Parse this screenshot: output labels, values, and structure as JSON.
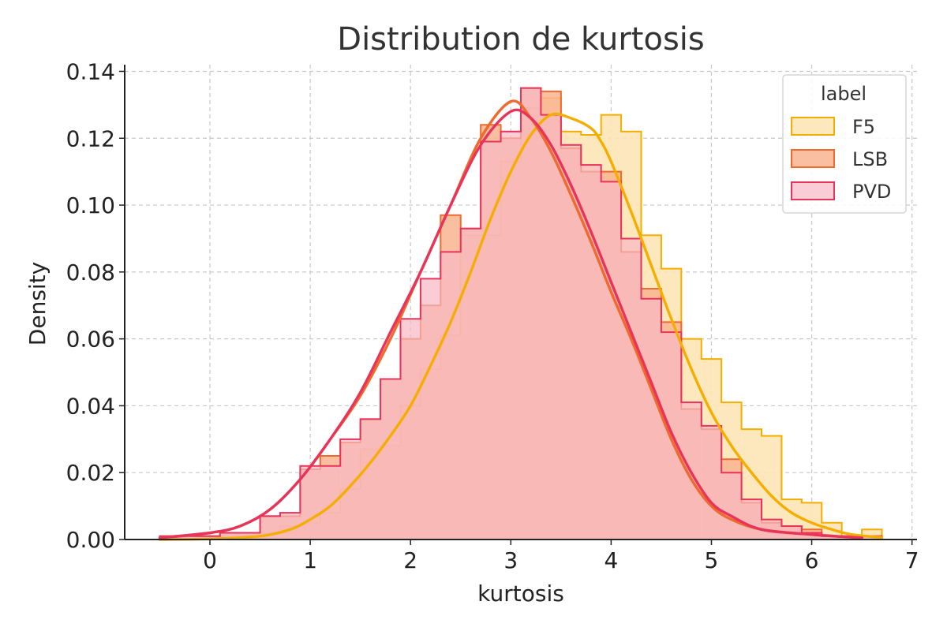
{
  "chart_data": {
    "type": "histogram",
    "title": "Distribution de kurtosis",
    "xlabel": "kurtosis",
    "ylabel": "Density",
    "xlim": [
      -0.85,
      7.05
    ],
    "ylim": [
      0,
      0.142
    ],
    "x_ticks": [
      0,
      1,
      2,
      3,
      4,
      5,
      6,
      7
    ],
    "x_tick_labels": [
      "0",
      "1",
      "2",
      "3",
      "4",
      "5",
      "6",
      "7"
    ],
    "y_ticks": [
      0,
      0.02,
      0.04,
      0.06,
      0.08,
      0.1,
      0.12,
      0.14
    ],
    "y_tick_labels": [
      "0.00",
      "0.02",
      "0.04",
      "0.06",
      "0.08",
      "0.10",
      "0.12",
      "0.14"
    ],
    "grid": true,
    "legend": {
      "title": "label",
      "placement": "top-right"
    },
    "bin_edges": [
      -0.5,
      -0.3,
      -0.1,
      0.1,
      0.3,
      0.5,
      0.7,
      0.9,
      1.1,
      1.3,
      1.5,
      1.7,
      1.9,
      2.1,
      2.3,
      2.5,
      2.7,
      2.9,
      3.1,
      3.3,
      3.5,
      3.7,
      3.9,
      4.1,
      4.3,
      4.5,
      4.7,
      4.9,
      5.1,
      5.3,
      5.5,
      5.7,
      5.9,
      6.1,
      6.3,
      6.5,
      6.7
    ],
    "series": [
      {
        "name": "F5",
        "color": "#F5AE00",
        "fill": "#FDE4B5",
        "fill_opacity": 0.9,
        "counts": [
          0,
          0,
          0,
          0,
          0.001,
          0.002,
          0.004,
          0.005,
          0.008,
          0.015,
          0.027,
          0.028,
          0.04,
          0.051,
          0.061,
          0.091,
          0.091,
          0.113,
          0.129,
          0.132,
          0.122,
          0.121,
          0.127,
          0.122,
          0.091,
          0.081,
          0.06,
          0.054,
          0.041,
          0.033,
          0.031,
          0.012,
          0.011,
          0.005,
          0.001,
          0.003
        ],
        "kde": [
          [
            -0.5,
            0.0
          ],
          [
            0.0,
            0.0002
          ],
          [
            0.5,
            0.001
          ],
          [
            0.8,
            0.003
          ],
          [
            1.0,
            0.006
          ],
          [
            1.2,
            0.01
          ],
          [
            1.4,
            0.016
          ],
          [
            1.6,
            0.023
          ],
          [
            1.8,
            0.031
          ],
          [
            2.0,
            0.04
          ],
          [
            2.2,
            0.052
          ],
          [
            2.4,
            0.065
          ],
          [
            2.6,
            0.08
          ],
          [
            2.8,
            0.096
          ],
          [
            3.0,
            0.11
          ],
          [
            3.2,
            0.121
          ],
          [
            3.4,
            0.127
          ],
          [
            3.6,
            0.126
          ],
          [
            3.8,
            0.123
          ],
          [
            3.9,
            0.119
          ],
          [
            4.0,
            0.113
          ],
          [
            4.2,
            0.098
          ],
          [
            4.4,
            0.082
          ],
          [
            4.6,
            0.066
          ],
          [
            4.8,
            0.051
          ],
          [
            5.0,
            0.038
          ],
          [
            5.2,
            0.028
          ],
          [
            5.4,
            0.02
          ],
          [
            5.6,
            0.013
          ],
          [
            5.8,
            0.008
          ],
          [
            6.0,
            0.005
          ],
          [
            6.2,
            0.003
          ],
          [
            6.4,
            0.0015
          ],
          [
            6.7,
            0.0006
          ]
        ]
      },
      {
        "name": "LSB",
        "color": "#EE6A2D",
        "fill": "#F9B48F",
        "fill_opacity": 0.85,
        "counts": [
          0.001,
          0.001,
          0.001,
          0.002,
          0.002,
          0.007,
          0.007,
          0.021,
          0.025,
          0.029,
          0.036,
          0.048,
          0.06,
          0.07,
          0.097,
          0.093,
          0.124,
          0.12,
          0.135,
          0.134,
          0.117,
          0.11,
          0.11,
          0.086,
          0.075,
          0.065,
          0.039,
          0.033,
          0.024,
          0.011,
          0.005,
          0.004,
          0.003,
          0.001,
          0.001,
          0.001
        ],
        "kde": [
          [
            -0.5,
            0.0005
          ],
          [
            0.0,
            0.002
          ],
          [
            0.3,
            0.004
          ],
          [
            0.6,
            0.009
          ],
          [
            0.9,
            0.018
          ],
          [
            1.2,
            0.03
          ],
          [
            1.5,
            0.043
          ],
          [
            1.8,
            0.06
          ],
          [
            2.1,
            0.08
          ],
          [
            2.4,
            0.1
          ],
          [
            2.7,
            0.12
          ],
          [
            3.0,
            0.131
          ],
          [
            3.2,
            0.126
          ],
          [
            3.4,
            0.116
          ],
          [
            3.6,
            0.103
          ],
          [
            3.8,
            0.089
          ],
          [
            4.0,
            0.074
          ],
          [
            4.2,
            0.06
          ],
          [
            4.4,
            0.045
          ],
          [
            4.6,
            0.03
          ],
          [
            4.8,
            0.018
          ],
          [
            5.0,
            0.01
          ],
          [
            5.2,
            0.006
          ],
          [
            5.5,
            0.003
          ],
          [
            6.0,
            0.0015
          ],
          [
            6.5,
            0.0005
          ]
        ]
      },
      {
        "name": "PVD",
        "color": "#E8335A",
        "fill": "#F8B8C4",
        "fill_opacity": 0.7,
        "counts": [
          0.001,
          0.001,
          0.001,
          0.002,
          0.002,
          0.007,
          0.008,
          0.022,
          0.022,
          0.03,
          0.036,
          0.048,
          0.066,
          0.078,
          0.086,
          0.093,
          0.119,
          0.122,
          0.135,
          0.127,
          0.118,
          0.112,
          0.107,
          0.09,
          0.072,
          0.062,
          0.041,
          0.034,
          0.02,
          0.012,
          0.006,
          0.004,
          0.002,
          0.001,
          0.001,
          0.001
        ],
        "kde": [
          [
            -0.5,
            0.0005
          ],
          [
            0.0,
            0.002
          ],
          [
            0.3,
            0.004
          ],
          [
            0.6,
            0.009
          ],
          [
            0.9,
            0.018
          ],
          [
            1.2,
            0.03
          ],
          [
            1.5,
            0.044
          ],
          [
            1.8,
            0.062
          ],
          [
            2.1,
            0.08
          ],
          [
            2.4,
            0.1
          ],
          [
            2.7,
            0.118
          ],
          [
            3.0,
            0.128
          ],
          [
            3.2,
            0.126
          ],
          [
            3.4,
            0.118
          ],
          [
            3.6,
            0.106
          ],
          [
            3.8,
            0.092
          ],
          [
            4.0,
            0.077
          ],
          [
            4.2,
            0.062
          ],
          [
            4.4,
            0.047
          ],
          [
            4.6,
            0.032
          ],
          [
            4.8,
            0.02
          ],
          [
            5.0,
            0.011
          ],
          [
            5.2,
            0.007
          ],
          [
            5.5,
            0.003
          ],
          [
            6.0,
            0.0015
          ],
          [
            6.5,
            0.0005
          ]
        ]
      }
    ]
  }
}
